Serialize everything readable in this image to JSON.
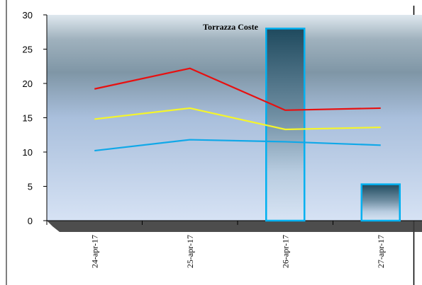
{
  "chart_data": {
    "type": "bar",
    "title": "Torrazza Coste",
    "categories": [
      "24-apr-17",
      "25-apr-17",
      "26-apr-17",
      "27-apr-17"
    ],
    "ylim": [
      0,
      30
    ],
    "yticks": [
      "0",
      "5",
      "10",
      "15",
      "20",
      "25",
      "30"
    ],
    "grid": false,
    "legend": "none",
    "bars": {
      "values": [
        0,
        0,
        28,
        5.3
      ],
      "stroke": "#00b0f0"
    },
    "series": [
      {
        "values": [
          19.2,
          22.2,
          16.1,
          16.4
        ],
        "color": "#e81010"
      },
      {
        "values": [
          14.8,
          16.4,
          13.3,
          13.6
        ],
        "color": "#f5f52a"
      },
      {
        "values": [
          10.2,
          11.8,
          11.5,
          11.0
        ],
        "color": "#10a8e8"
      }
    ],
    "colors": {
      "plot_top": "#7f96a6",
      "plot_bottom": "#d6e2f4",
      "shadow": "#404040"
    }
  }
}
